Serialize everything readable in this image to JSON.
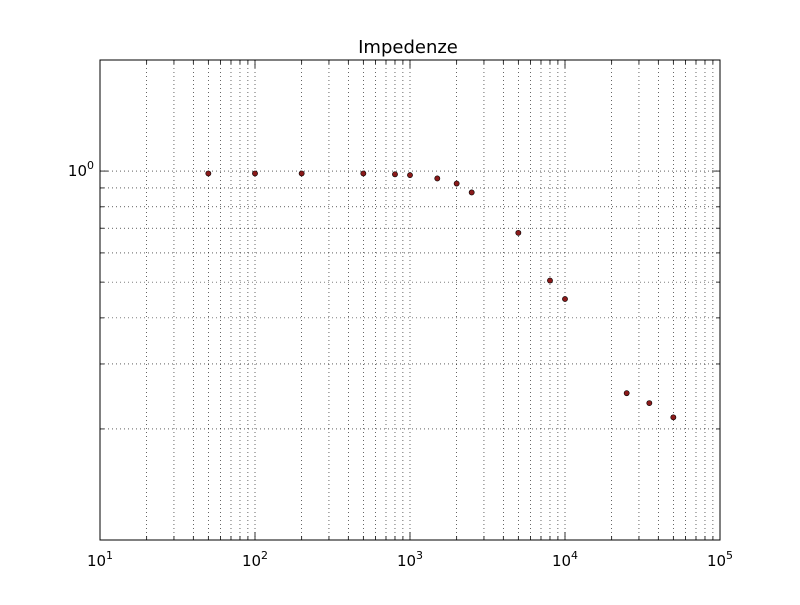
{
  "chart_data": {
    "type": "scatter",
    "title": "Impedenze",
    "xlabel": "",
    "ylabel": "",
    "xscale": "log",
    "yscale": "log",
    "xlim": [
      10,
      100000
    ],
    "ylim": [
      0.1,
      2.0
    ],
    "grid": true,
    "legend": "none",
    "marker_color": "#8b1a1a",
    "x_major_ticks": [
      {
        "value": 10,
        "base": "10",
        "exp": "1"
      },
      {
        "value": 100,
        "base": "10",
        "exp": "2"
      },
      {
        "value": 1000,
        "base": "10",
        "exp": "3"
      },
      {
        "value": 10000,
        "base": "10",
        "exp": "4"
      },
      {
        "value": 100000,
        "base": "10",
        "exp": "5"
      }
    ],
    "y_major_ticks": [
      {
        "value": 1,
        "base": "10",
        "exp": "0"
      }
    ],
    "y_minor_ticks": [
      0.2,
      0.3,
      0.4,
      0.5,
      0.6,
      0.7,
      0.8,
      0.9
    ],
    "points": [
      {
        "x": 50,
        "y": 0.985
      },
      {
        "x": 100,
        "y": 0.985
      },
      {
        "x": 200,
        "y": 0.985
      },
      {
        "x": 500,
        "y": 0.985
      },
      {
        "x": 800,
        "y": 0.98
      },
      {
        "x": 1000,
        "y": 0.975
      },
      {
        "x": 1500,
        "y": 0.955
      },
      {
        "x": 2000,
        "y": 0.925
      },
      {
        "x": 2500,
        "y": 0.875
      },
      {
        "x": 5000,
        "y": 0.68
      },
      {
        "x": 8000,
        "y": 0.505
      },
      {
        "x": 10000,
        "y": 0.45
      },
      {
        "x": 25000,
        "y": 0.25
      },
      {
        "x": 35000,
        "y": 0.235
      },
      {
        "x": 50000,
        "y": 0.215
      }
    ]
  }
}
